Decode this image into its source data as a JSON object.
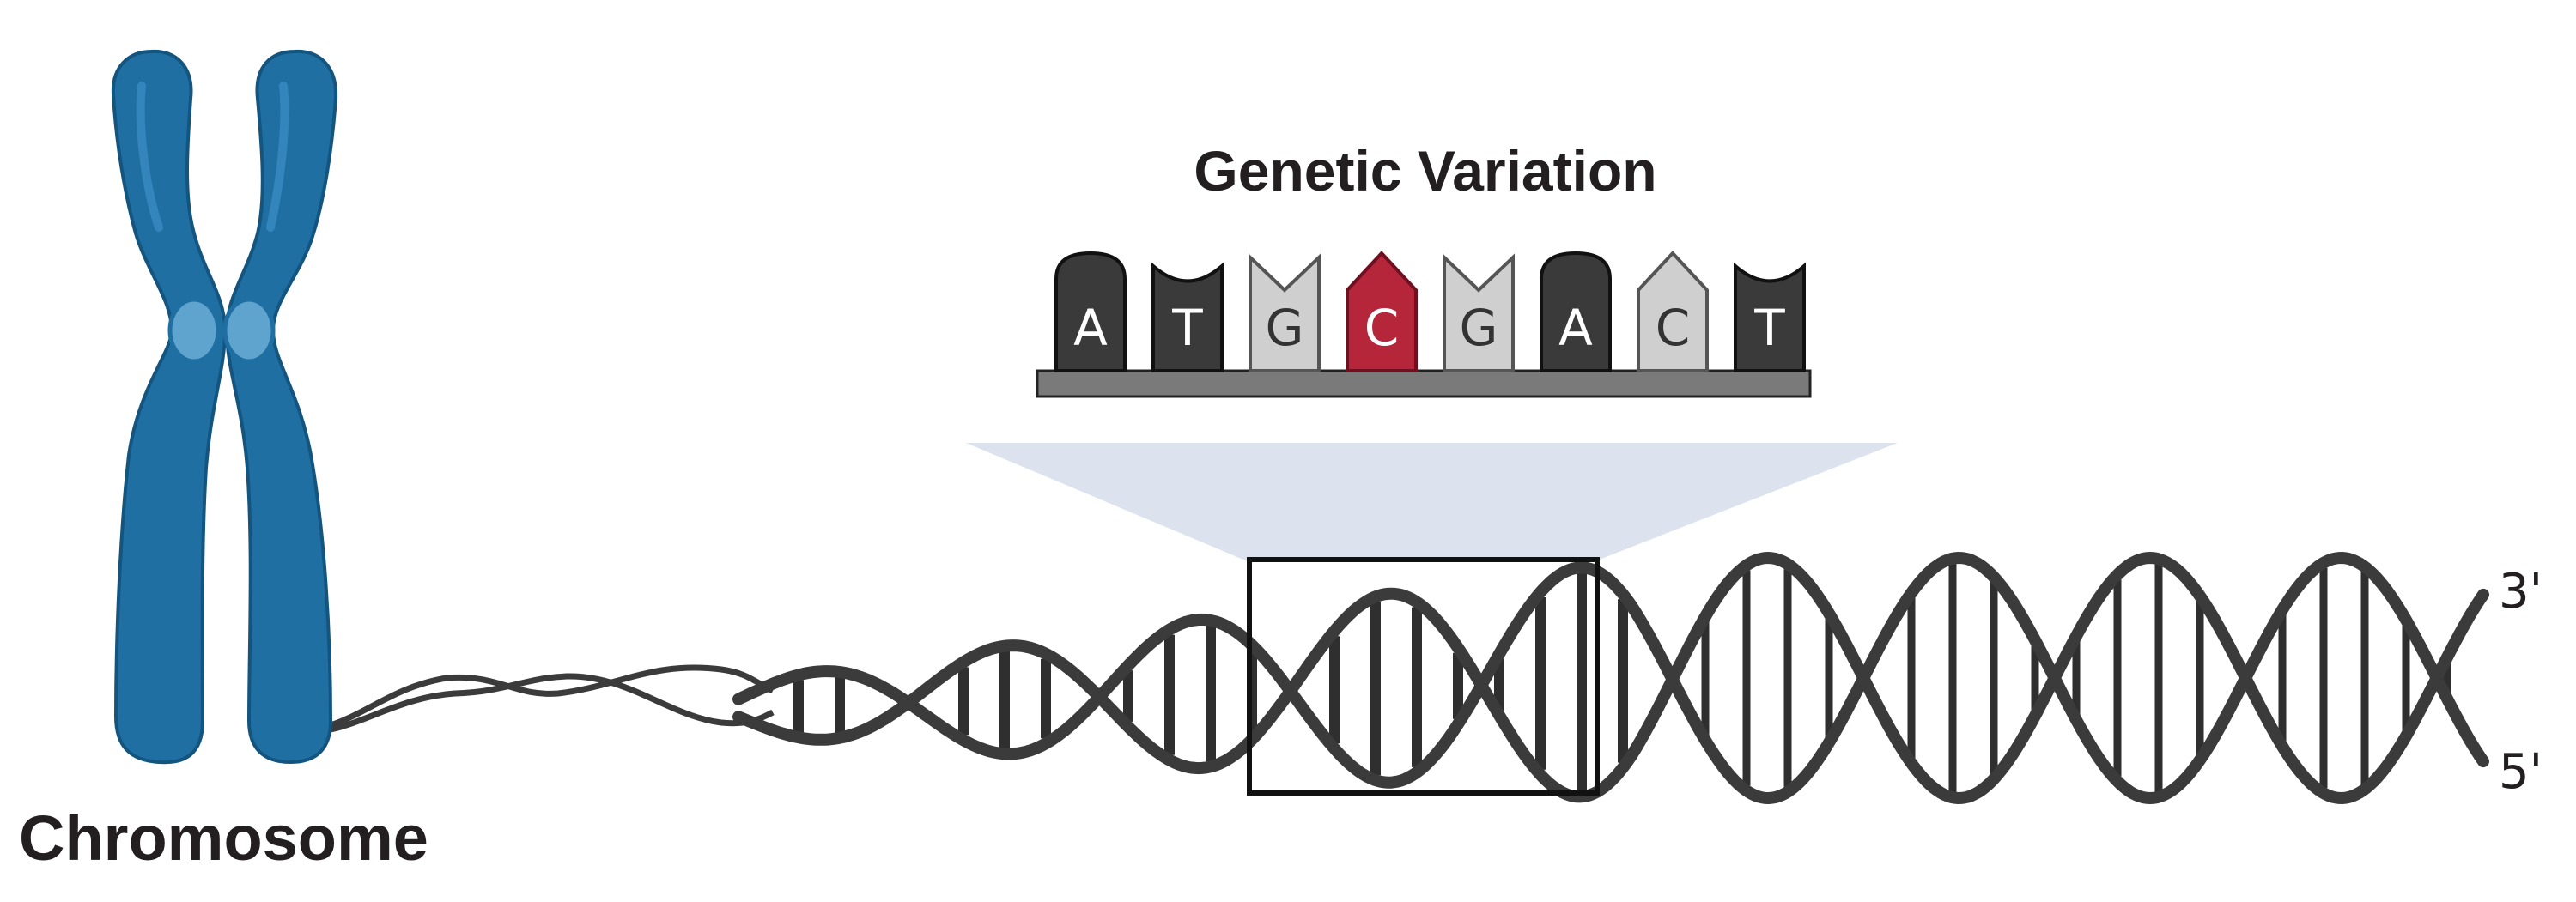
{
  "title": "Genetic Variation",
  "chromosome_label": "Chromosome",
  "strand_ends": {
    "top": "3'",
    "bottom": "5'"
  },
  "sequence": [
    {
      "base": "A",
      "variant": false
    },
    {
      "base": "T",
      "variant": false
    },
    {
      "base": "G",
      "variant": false
    },
    {
      "base": "C",
      "variant": true
    },
    {
      "base": "G",
      "variant": false
    },
    {
      "base": "A",
      "variant": false
    },
    {
      "base": "C",
      "variant": false
    },
    {
      "base": "T",
      "variant": false
    }
  ],
  "colors": {
    "chromosome": "#1f6fa3",
    "chromosome_dark": "#14557f",
    "centromere": "#5fa4cf",
    "dna_strand": "#3b3b3b",
    "rung": "#2f2f2f",
    "zoom_fill": "#dde3ee",
    "base_dark": "#3a3a3a",
    "base_light": "#cfcfcf",
    "variant": "#b5263a",
    "baseplate": "#7a7a7a"
  }
}
